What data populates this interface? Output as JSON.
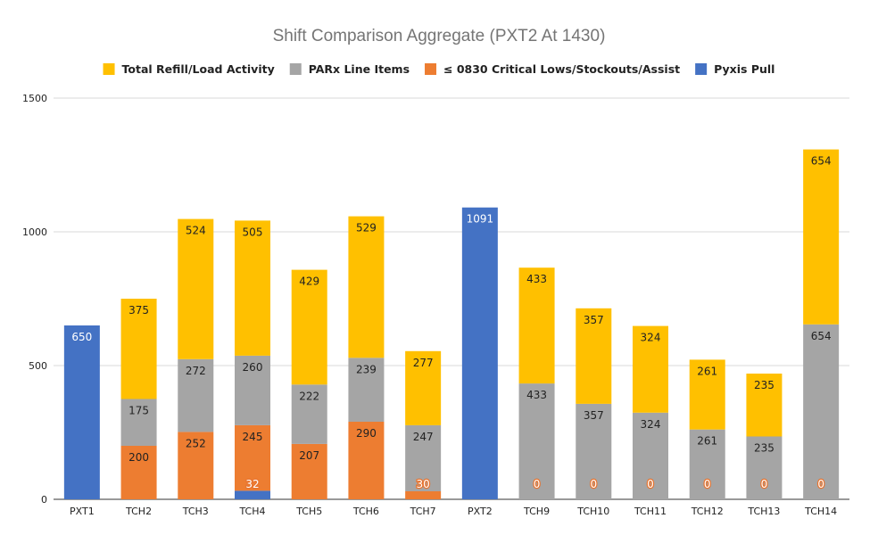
{
  "chart_data": {
    "type": "bar",
    "stacked": true,
    "title": "Shift Comparison Aggregate (PXT2 At 1430)",
    "xlabel": "",
    "ylabel": "",
    "ylim": [
      0,
      1500
    ],
    "yticks": [
      0,
      500,
      1000,
      1500
    ],
    "grid": true,
    "legend_position": "top",
    "categories": [
      "PXT1",
      "TCH2",
      "TCH3",
      "TCH4",
      "TCH5",
      "TCH6",
      "TCH7",
      "PXT2",
      "TCH9",
      "TCH10",
      "TCH11",
      "TCH12",
      "TCH13",
      "TCH14"
    ],
    "legend_order": [
      "Total Refill/Load Activity",
      "PARx Line Items",
      "≤ 0830 Critical Lows/Stockouts/Assist",
      "Pyxis Pull"
    ],
    "series": [
      {
        "name": "Pyxis Pull",
        "color": "#4472c4",
        "values": [
          650,
          null,
          null,
          32,
          null,
          null,
          null,
          1091,
          null,
          null,
          null,
          null,
          null,
          null
        ]
      },
      {
        "name": "≤ 0830 Critical Lows/Stockouts/Assist",
        "color": "#ed7d31",
        "values": [
          null,
          200,
          252,
          245,
          207,
          290,
          30,
          null,
          0,
          0,
          0,
          0,
          0,
          0
        ]
      },
      {
        "name": "PARx Line Items",
        "color": "#a5a5a5",
        "values": [
          null,
          175,
          272,
          260,
          222,
          239,
          247,
          null,
          433,
          357,
          324,
          261,
          235,
          654
        ]
      },
      {
        "name": "Total Refill/Load Activity",
        "color": "#ffc000",
        "values": [
          null,
          375,
          524,
          505,
          429,
          529,
          277,
          null,
          433,
          357,
          324,
          261,
          235,
          654
        ]
      }
    ],
    "style": {
      "title_color": "#757575",
      "grid_color": "#d9d9d9",
      "axis_color": "#333333"
    }
  }
}
